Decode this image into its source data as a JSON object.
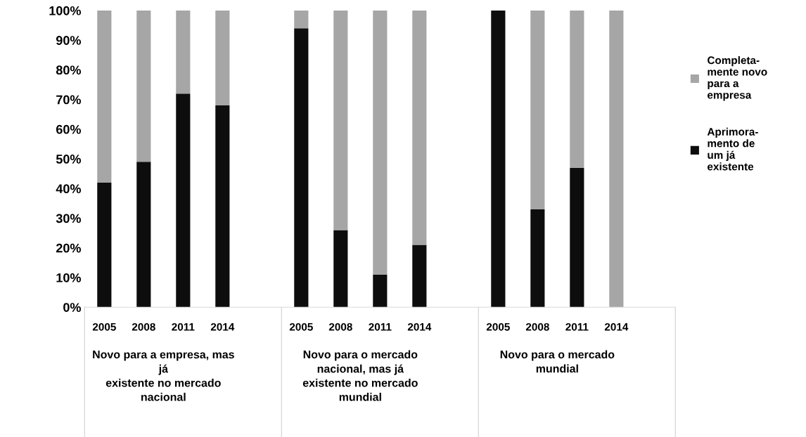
{
  "chart_data": {
    "type": "bar",
    "stacked": true,
    "categories": [
      "2005",
      "2008",
      "2011",
      "2014",
      null,
      "2005",
      "2008",
      "2011",
      "2014",
      null,
      "2005",
      "2008",
      "2011",
      "2014",
      null
    ],
    "series": [
      {
        "name": "Aprimora-\nmento de\num já\nexistente",
        "color": "#0d0d0d",
        "values": [
          42,
          49,
          72,
          68,
          null,
          94,
          26,
          11,
          21,
          null,
          100,
          33,
          47,
          0,
          null
        ]
      },
      {
        "name": "Completa-\nmente novo\npara a\nempresa",
        "color": "#a6a6a6",
        "values": [
          58,
          51,
          28,
          32,
          null,
          6,
          74,
          89,
          79,
          null,
          0,
          67,
          53,
          100,
          null
        ]
      }
    ],
    "ylim": [
      0,
      100
    ],
    "yticks": [
      {
        "value": 0,
        "label": "0%"
      },
      {
        "value": 10,
        "label": "10%"
      },
      {
        "value": 20,
        "label": "20%"
      },
      {
        "value": 30,
        "label": "30%"
      },
      {
        "value": 40,
        "label": "40%"
      },
      {
        "value": 50,
        "label": "50%"
      },
      {
        "value": 60,
        "label": "60%"
      },
      {
        "value": 70,
        "label": "70%"
      },
      {
        "value": 80,
        "label": "80%"
      },
      {
        "value": 90,
        "label": "90%"
      },
      {
        "value": 100,
        "label": "100%"
      }
    ],
    "annotations": [
      "Novo para a empresa, mas\njá\nexistente no mercado\nnacional",
      "Novo para o mercado\nnacional, mas já\nexistente no mercado\nmundial",
      "Novo para o mercado\nmundial"
    ],
    "grid": false,
    "legend": "right"
  }
}
